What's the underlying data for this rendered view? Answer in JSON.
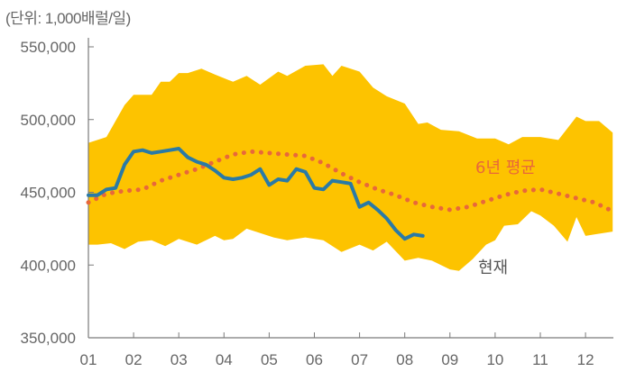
{
  "unit_note": "(단위: 1,000배럴/일)",
  "colors": {
    "band": "#FDC300",
    "current": "#2A7AA6",
    "average": "#E8683A",
    "axis": "#7a7a7a",
    "text": "#666666"
  },
  "chart_data": {
    "type": "line",
    "ylim": [
      350000,
      550000
    ],
    "yticks": [
      {
        "value": 550000,
        "label": "550,000"
      },
      {
        "value": 500000,
        "label": "500,000"
      },
      {
        "value": 450000,
        "label": "450,000"
      },
      {
        "value": 400000,
        "label": "400,000"
      },
      {
        "value": 350000,
        "label": "350,000"
      }
    ],
    "xlim": [
      1,
      12.6
    ],
    "xticks": [
      {
        "value": 1,
        "label": "01"
      },
      {
        "value": 2,
        "label": "02"
      },
      {
        "value": 3,
        "label": "03"
      },
      {
        "value": 4,
        "label": "04"
      },
      {
        "value": 5,
        "label": "05"
      },
      {
        "value": 6,
        "label": "06"
      },
      {
        "value": 7,
        "label": "07"
      },
      {
        "value": 8,
        "label": "08"
      },
      {
        "value": 9,
        "label": "09"
      },
      {
        "value": 10,
        "label": "10"
      },
      {
        "value": 11,
        "label": "11"
      },
      {
        "value": 12,
        "label": "12"
      }
    ],
    "band": {
      "upper": [
        [
          1.0,
          484000
        ],
        [
          1.4,
          488000
        ],
        [
          1.8,
          510000
        ],
        [
          2.0,
          517000
        ],
        [
          2.4,
          517000
        ],
        [
          2.6,
          526000
        ],
        [
          2.8,
          526000
        ],
        [
          3.0,
          532000
        ],
        [
          3.2,
          532000
        ],
        [
          3.5,
          535000
        ],
        [
          3.8,
          531000
        ],
        [
          4.2,
          526000
        ],
        [
          4.5,
          530000
        ],
        [
          4.8,
          524000
        ],
        [
          5.2,
          533000
        ],
        [
          5.4,
          530000
        ],
        [
          5.8,
          537000
        ],
        [
          6.2,
          538000
        ],
        [
          6.4,
          530000
        ],
        [
          6.6,
          537000
        ],
        [
          7.0,
          533000
        ],
        [
          7.3,
          522000
        ],
        [
          7.6,
          516000
        ],
        [
          8.0,
          511000
        ],
        [
          8.3,
          497000
        ],
        [
          8.5,
          498000
        ],
        [
          8.8,
          493000
        ],
        [
          9.2,
          492000
        ],
        [
          9.6,
          487000
        ],
        [
          10.0,
          487000
        ],
        [
          10.3,
          483000
        ],
        [
          10.6,
          488000
        ],
        [
          11.0,
          488000
        ],
        [
          11.4,
          486000
        ],
        [
          11.8,
          502000
        ],
        [
          12.0,
          499000
        ],
        [
          12.3,
          499000
        ],
        [
          12.6,
          491000
        ]
      ],
      "lower": [
        [
          12.6,
          423000
        ],
        [
          12.2,
          421000
        ],
        [
          12.0,
          420000
        ],
        [
          11.8,
          433000
        ],
        [
          11.6,
          416000
        ],
        [
          11.3,
          427000
        ],
        [
          11.0,
          434000
        ],
        [
          10.8,
          437000
        ],
        [
          10.5,
          428000
        ],
        [
          10.2,
          427000
        ],
        [
          10.0,
          417000
        ],
        [
          9.8,
          414000
        ],
        [
          9.5,
          404000
        ],
        [
          9.2,
          396000
        ],
        [
          9.0,
          397000
        ],
        [
          8.6,
          403000
        ],
        [
          8.3,
          405000
        ],
        [
          8.0,
          403000
        ],
        [
          7.6,
          416000
        ],
        [
          7.3,
          410000
        ],
        [
          7.0,
          414000
        ],
        [
          6.6,
          409000
        ],
        [
          6.2,
          417000
        ],
        [
          5.8,
          419000
        ],
        [
          5.4,
          417000
        ],
        [
          5.1,
          419000
        ],
        [
          4.8,
          422000
        ],
        [
          4.5,
          425000
        ],
        [
          4.2,
          418000
        ],
        [
          4.0,
          417000
        ],
        [
          3.8,
          420000
        ],
        [
          3.6,
          417000
        ],
        [
          3.4,
          414000
        ],
        [
          3.0,
          418000
        ],
        [
          2.7,
          413000
        ],
        [
          2.4,
          417000
        ],
        [
          2.1,
          416000
        ],
        [
          1.8,
          411000
        ],
        [
          1.5,
          415000
        ],
        [
          1.2,
          414000
        ],
        [
          1.0,
          414000
        ]
      ]
    },
    "series": [
      {
        "name": "현재",
        "values": [
          [
            1.0,
            448000
          ],
          [
            1.2,
            448000
          ],
          [
            1.4,
            452000
          ],
          [
            1.6,
            453000
          ],
          [
            1.8,
            469000
          ],
          [
            2.0,
            478000
          ],
          [
            2.2,
            479000
          ],
          [
            2.4,
            477000
          ],
          [
            2.6,
            478000
          ],
          [
            2.8,
            479000
          ],
          [
            3.0,
            480000
          ],
          [
            3.2,
            474000
          ],
          [
            3.4,
            471000
          ],
          [
            3.6,
            469000
          ],
          [
            3.8,
            465000
          ],
          [
            4.0,
            460000
          ],
          [
            4.2,
            459000
          ],
          [
            4.4,
            460000
          ],
          [
            4.6,
            462000
          ],
          [
            4.8,
            466000
          ],
          [
            5.0,
            455000
          ],
          [
            5.2,
            459000
          ],
          [
            5.4,
            458000
          ],
          [
            5.6,
            466000
          ],
          [
            5.8,
            464000
          ],
          [
            6.0,
            453000
          ],
          [
            6.2,
            452000
          ],
          [
            6.4,
            458000
          ],
          [
            6.6,
            457000
          ],
          [
            6.8,
            456000
          ],
          [
            7.0,
            440000
          ],
          [
            7.2,
            443000
          ],
          [
            7.4,
            438000
          ],
          [
            7.6,
            432000
          ],
          [
            7.8,
            424000
          ],
          [
            8.0,
            418000
          ],
          [
            8.2,
            421000
          ],
          [
            8.4,
            420000
          ]
        ]
      },
      {
        "name": "6년 평균",
        "values": [
          [
            1.0,
            443000
          ],
          [
            1.4,
            449000
          ],
          [
            1.8,
            451000
          ],
          [
            2.2,
            452000
          ],
          [
            2.6,
            458000
          ],
          [
            3.0,
            462000
          ],
          [
            3.4,
            466000
          ],
          [
            3.8,
            471000
          ],
          [
            4.2,
            476000
          ],
          [
            4.6,
            478000
          ],
          [
            5.0,
            477000
          ],
          [
            5.4,
            476000
          ],
          [
            5.8,
            475000
          ],
          [
            6.2,
            470000
          ],
          [
            6.6,
            463000
          ],
          [
            7.0,
            457000
          ],
          [
            7.4,
            452000
          ],
          [
            7.8,
            448000
          ],
          [
            8.2,
            443000
          ],
          [
            8.6,
            440000
          ],
          [
            9.0,
            438000
          ],
          [
            9.4,
            440000
          ],
          [
            9.8,
            444000
          ],
          [
            10.2,
            448000
          ],
          [
            10.6,
            451000
          ],
          [
            11.0,
            452000
          ],
          [
            11.4,
            449000
          ],
          [
            11.8,
            446000
          ],
          [
            12.2,
            443000
          ],
          [
            12.6,
            437000
          ]
        ]
      }
    ],
    "labels": {
      "current": "현재",
      "average": "6년 평균"
    }
  }
}
